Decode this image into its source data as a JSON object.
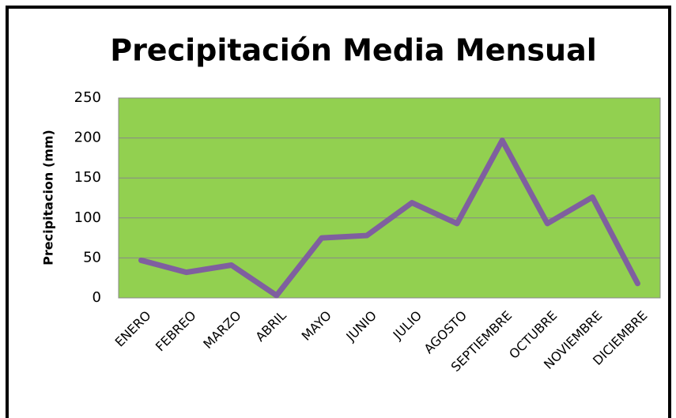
{
  "chart_data": {
    "type": "line",
    "title": "Precipitación Media Mensual",
    "y_label": "Precipitacion (mm)",
    "categories": [
      "ENERO",
      "FEBREO",
      "MARZO",
      "ABRIL",
      "MAYO",
      "JUNIO",
      "JULIO",
      "AGOSTO",
      "SEPTIEMBRE",
      "OCTUBRE",
      "NOVIEMBRE",
      "DICIEMBRE"
    ],
    "values": [
      47,
      32,
      41,
      3,
      75,
      78,
      119,
      93,
      197,
      93,
      126,
      18
    ],
    "color": "#7f5f9f",
    "background": "#92d050",
    "ylim": [
      0,
      250
    ],
    "yticks": [
      0,
      50,
      100,
      150,
      200,
      250
    ],
    "grid": true
  }
}
